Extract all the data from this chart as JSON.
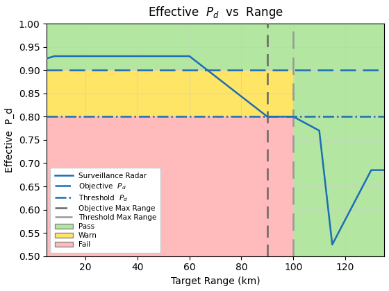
{
  "title": "Effective  P_d  vs  Range",
  "xlabel": "Target Range (km)",
  "ylabel": "Effective  P_d",
  "xlim": [
    5,
    135
  ],
  "ylim": [
    0.5,
    1.0
  ],
  "xticks": [
    20,
    40,
    60,
    80,
    100,
    120
  ],
  "yticks": [
    0.5,
    0.55,
    0.6,
    0.65,
    0.7,
    0.75,
    0.8,
    0.85,
    0.9,
    0.95,
    1.0
  ],
  "objective_pd": 0.9,
  "threshold_pd": 0.8,
  "objective_max_range": 90,
  "threshold_max_range": 100,
  "radar_x": [
    5,
    8,
    60,
    90,
    100,
    110,
    115,
    130,
    135
  ],
  "radar_y": [
    0.925,
    0.93,
    0.93,
    0.8,
    0.8,
    0.77,
    0.525,
    0.685,
    0.685
  ],
  "pass_color": "#b3e6a0",
  "warn_color": "#ffe566",
  "fail_color": "#ffbbbb",
  "radar_color": "#1a6eb5",
  "line_color": "#1a6eb5",
  "vline_obj_color": "#666666",
  "vline_thr_color": "#999999",
  "bg_color": "#ffffff"
}
